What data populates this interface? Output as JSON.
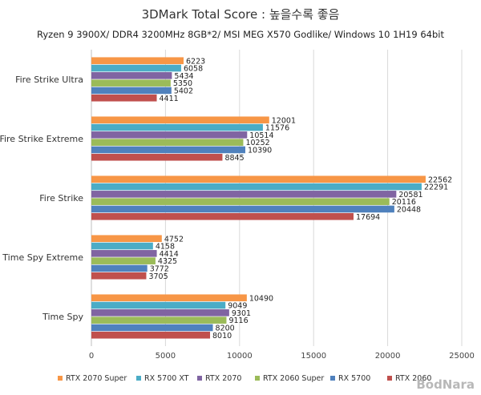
{
  "chart_data": {
    "type": "bar",
    "orientation": "horizontal",
    "title": "3DMark Total Score : 높을수록 좋음",
    "subtitle": "Ryzen 9 3900X/ DDR4 3200MHz 8GB*2/ MSI MEG X570 Godlike/ Windows 10 1H19 64bit",
    "categories": [
      "Fire Strike Ultra",
      "Fire Strike Extreme",
      "Fire Strike",
      "Time Spy Extreme",
      "Time Spy"
    ],
    "series": [
      {
        "name": "RTX 2070 Super",
        "color": "#f79646",
        "values": [
          6223,
          12001,
          22562,
          4752,
          10490
        ]
      },
      {
        "name": "RX 5700 XT",
        "color": "#4bacc6",
        "values": [
          6058,
          11576,
          22291,
          4158,
          9049
        ]
      },
      {
        "name": "RTX 2070",
        "color": "#8064a2",
        "values": [
          5434,
          10514,
          20581,
          4414,
          9301
        ]
      },
      {
        "name": "RTX 2060 Super",
        "color": "#9bbb59",
        "values": [
          5350,
          10252,
          20116,
          4325,
          9116
        ]
      },
      {
        "name": "RX 5700",
        "color": "#4f81bd",
        "values": [
          5402,
          10390,
          20448,
          3772,
          8200
        ]
      },
      {
        "name": "RTX 2060",
        "color": "#c0504d",
        "values": [
          4411,
          8845,
          17694,
          3705,
          8010
        ]
      }
    ],
    "xlim": [
      0,
      25000
    ],
    "xticks": [
      0,
      5000,
      10000,
      15000,
      20000,
      25000
    ],
    "grid": true,
    "legend_position": "bottom"
  },
  "watermark": "BodNara"
}
